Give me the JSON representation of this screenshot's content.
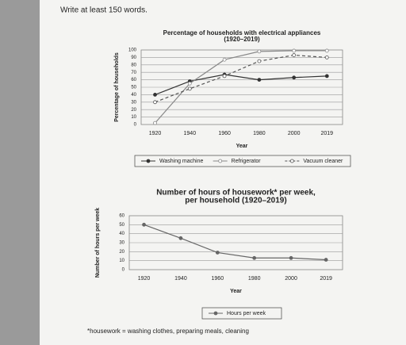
{
  "instruction": "Write at least 150 words.",
  "footnote": "*housework = washing clothes, preparing meals, cleaning",
  "chart_data": [
    {
      "type": "line",
      "title": "Percentage of households with electrical appliances",
      "subtitle": "(1920–2019)",
      "x_label": "Year",
      "y_label": "Percentage of households",
      "x": [
        1920,
        1940,
        1960,
        1980,
        2000,
        2019
      ],
      "xticks": [
        1920,
        1940,
        1960,
        1980,
        2000,
        2019
      ],
      "xlim": [
        1912,
        2028
      ],
      "ylim": [
        0,
        100
      ],
      "yticks": [
        0,
        10,
        20,
        30,
        40,
        50,
        60,
        70,
        80,
        90,
        100
      ],
      "grid": true,
      "legend": "bottom",
      "series": [
        {
          "name": "Washing machine",
          "color": "#333333",
          "marker": "filled",
          "dashed": false,
          "values": [
            40,
            58,
            67,
            60,
            63,
            65
          ]
        },
        {
          "name": "Refrigerator",
          "color": "#888888",
          "marker": "open",
          "dashed": false,
          "values": [
            2,
            55,
            87,
            98,
            99,
            99
          ]
        },
        {
          "name": "Vacuum cleaner",
          "color": "#555555",
          "marker": "open",
          "dashed": true,
          "values": [
            30,
            48,
            65,
            85,
            93,
            90
          ]
        }
      ]
    },
    {
      "type": "line",
      "title": "Number of hours of housework* per week,",
      "subtitle": "per household (1920–2019)",
      "x_label": "Year",
      "y_label": "Number of hours per week",
      "x": [
        1920,
        1940,
        1960,
        1980,
        2000,
        2019
      ],
      "xticks": [
        1920,
        1940,
        1960,
        1980,
        2000,
        2019
      ],
      "xlim": [
        1912,
        2028
      ],
      "ylim": [
        0,
        60
      ],
      "yticks": [
        0,
        10,
        20,
        30,
        40,
        50,
        60
      ],
      "grid": true,
      "legend": "bottom",
      "series": [
        {
          "name": "Hours per week",
          "color": "#666666",
          "marker": "filled",
          "dashed": false,
          "values": [
            50,
            35,
            19,
            13,
            13,
            11
          ]
        }
      ]
    }
  ]
}
